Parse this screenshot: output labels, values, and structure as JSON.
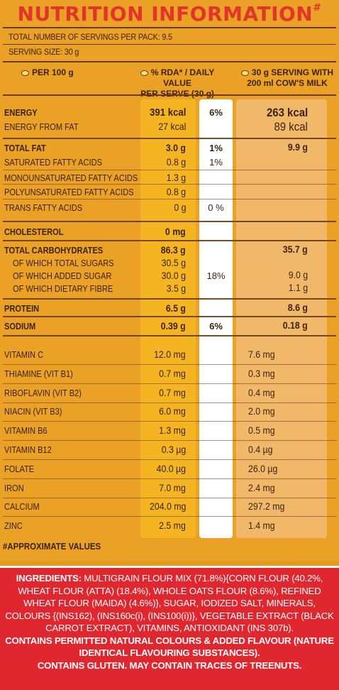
{
  "title": "NUTRITION INFORMATION",
  "title_mark": "#",
  "servings_per_pack": "TOTAL NUMBER OF SERVINGS PER PACK: 9.5",
  "serving_size": "SERVING SIZE: 30 g",
  "columns": {
    "per100": "PER 100 g",
    "rda_line1": "% RDA* / DAILY VALUE",
    "rda_line2": "PER SERVE (30 g)",
    "milk_line1": "30 g SERVING WITH",
    "milk_line2": "200 ml COW'S MILK"
  },
  "rows": [
    {
      "label": "ENERGY",
      "v100": "391 kcal",
      "rda": "6%",
      "milk": "263 kcal"
    },
    {
      "label": "ENERGY FROM FAT",
      "v100": "27 kcal",
      "rda": "",
      "milk": "89 kcal"
    },
    {
      "label": "TOTAL FAT",
      "v100": "3.0 g",
      "rda": "1%",
      "milk": "9.9 g"
    },
    {
      "label": "SATURATED FATTY ACIDS",
      "v100": "0.8 g",
      "rda": "1%",
      "milk": ""
    },
    {
      "label": "MONOUNSATURATED FATTY ACIDS",
      "v100": "1.3 g",
      "rda": "",
      "milk": ""
    },
    {
      "label": "POLYUNSATURATED FATTY ACIDS",
      "v100": "0.8 g",
      "rda": "",
      "milk": ""
    },
    {
      "label": "TRANS FATTY ACIDS",
      "v100": "0 g",
      "rda": "0 %",
      "milk": ""
    },
    {
      "label": "CHOLESTEROL",
      "v100": "0 mg",
      "rda": "",
      "milk": ""
    },
    {
      "label": "TOTAL CARBOHYDRATES",
      "v100": "86.3 g",
      "rda": "",
      "milk": "35.7 g"
    },
    {
      "label": "OF WHICH TOTAL SUGARS",
      "v100": "30.5 g",
      "rda": "",
      "milk": ""
    },
    {
      "label": "OF WHICH ADDED SUGAR",
      "v100": "30.0 g",
      "rda": "18%",
      "milk": "9.0 g"
    },
    {
      "label": "OF WHICH DIETARY FIBRE",
      "v100": "3.5 g",
      "rda": "",
      "milk": "1.1 g"
    },
    {
      "label": "PROTEIN",
      "v100": "6.5 g",
      "rda": "",
      "milk": "8.6 g"
    },
    {
      "label": "SODIUM",
      "v100": "0.39 g",
      "rda": "6%",
      "milk": "0.18 g"
    }
  ],
  "vitamins": [
    {
      "label": "VITAMIN C",
      "v100": "12.0 mg",
      "milk": "7.6 mg"
    },
    {
      "label": "THIAMINE (VIT B1)",
      "v100": "0.7 mg",
      "milk": "0.3 mg"
    },
    {
      "label": "RIBOFLAVIN (VIT B2)",
      "v100": "0.7 mg",
      "milk": "0.4 mg"
    },
    {
      "label": "NIACIN (VIT B3)",
      "v100": "6.0 mg",
      "milk": "2.0 mg"
    },
    {
      "label": "VITAMIN B6",
      "v100": "1.3 mg",
      "milk": "0.5 mg"
    },
    {
      "label": "VITAMIN B12",
      "v100": "0.3 µg",
      "milk": "0.4 µg"
    },
    {
      "label": "FOLATE",
      "v100": "40.0 µg",
      "milk": "26.0 µg"
    },
    {
      "label": "IRON",
      "v100": "7.0 mg",
      "milk": "2.4 mg"
    },
    {
      "label": "CALCIUM",
      "v100": "204.0 mg",
      "milk": "297.2 mg"
    },
    {
      "label": "ZINC",
      "v100": "2.5 mg",
      "milk": "1.4 mg"
    }
  ],
  "approx": "#APPROXIMATE VALUES",
  "ingredients": {
    "heading": "INGREDIENTS:",
    "text": "MULTIGRAIN FLOUR MIX (71.8%){CORN FLOUR (40.2%, WHEAT FLOUR (ATTA) (18.4%), WHOLE OATS FLOUR (8.6%), REFINED WHEAT FLOUR (MAIDA) (4.6%)}, SUGAR, IODIZED SALT, MINERALS, COLOURS {(INS162), (INS160c(i), (INS100(i))}, VEGETABLE EXTRACT (BLACK CARROT EXTRACT), VITAMINS, ANTIOXIDANT (INS 307b).",
    "note1": "CONTAINS PERMITTED NATURAL COLOURS & ADDED FLAVOUR (NATURE IDENTICAL FLAVOURING SUBSTANCES).",
    "note2": "CONTAINS GLUTEN. MAY CONTAIN TRACES OF TREENUTS."
  }
}
